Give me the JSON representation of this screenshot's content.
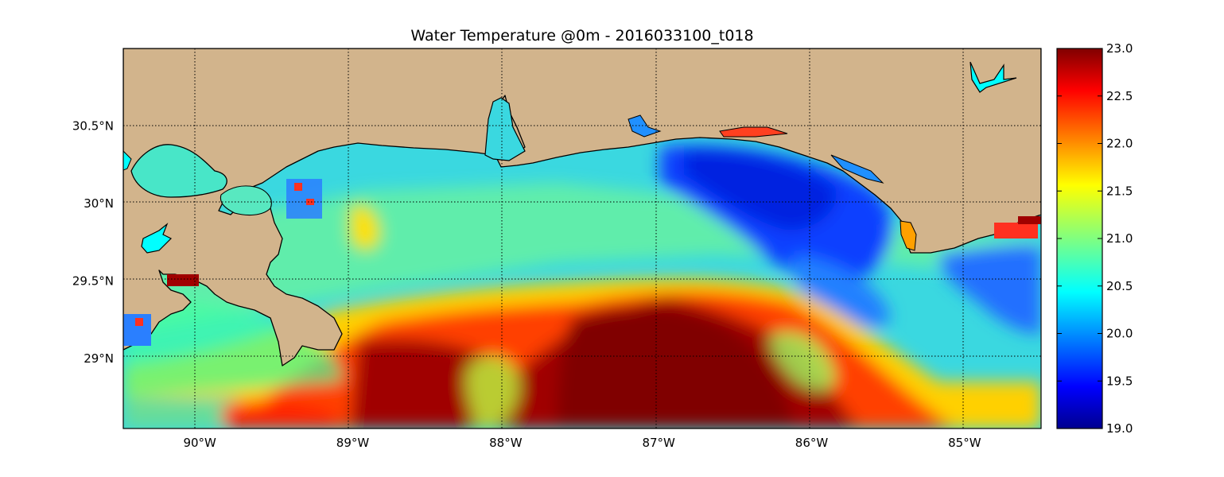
{
  "title": "Water Temperature @0m - 2016033100_t018",
  "map": {
    "lon_range": [
      -90.5,
      -84.5
    ],
    "lat_range": [
      28.55,
      31.0
    ],
    "lon_ticks": [
      {
        "value": -90,
        "label": "90°W"
      },
      {
        "value": -89,
        "label": "89°W"
      },
      {
        "value": -88,
        "label": "88°W"
      },
      {
        "value": -87,
        "label": "87°W"
      },
      {
        "value": -86,
        "label": "86°W"
      },
      {
        "value": -85,
        "label": "85°W"
      }
    ],
    "lat_ticks": [
      {
        "value": 30.5,
        "label": "30.5°N"
      },
      {
        "value": 30.0,
        "label": "30°N"
      },
      {
        "value": 29.5,
        "label": "29.5°N"
      },
      {
        "value": 29.0,
        "label": "29°N"
      }
    ],
    "grid": true,
    "land_color": "#d2b48c",
    "lake_color": "#00ffff"
  },
  "colorbar": {
    "min": 19.0,
    "max": 23.0,
    "colormap": "jet",
    "ticks": [
      "19.0",
      "19.5",
      "20.0",
      "20.5",
      "21.0",
      "21.5",
      "22.0",
      "22.5",
      "23.0"
    ],
    "placement": "right"
  }
}
